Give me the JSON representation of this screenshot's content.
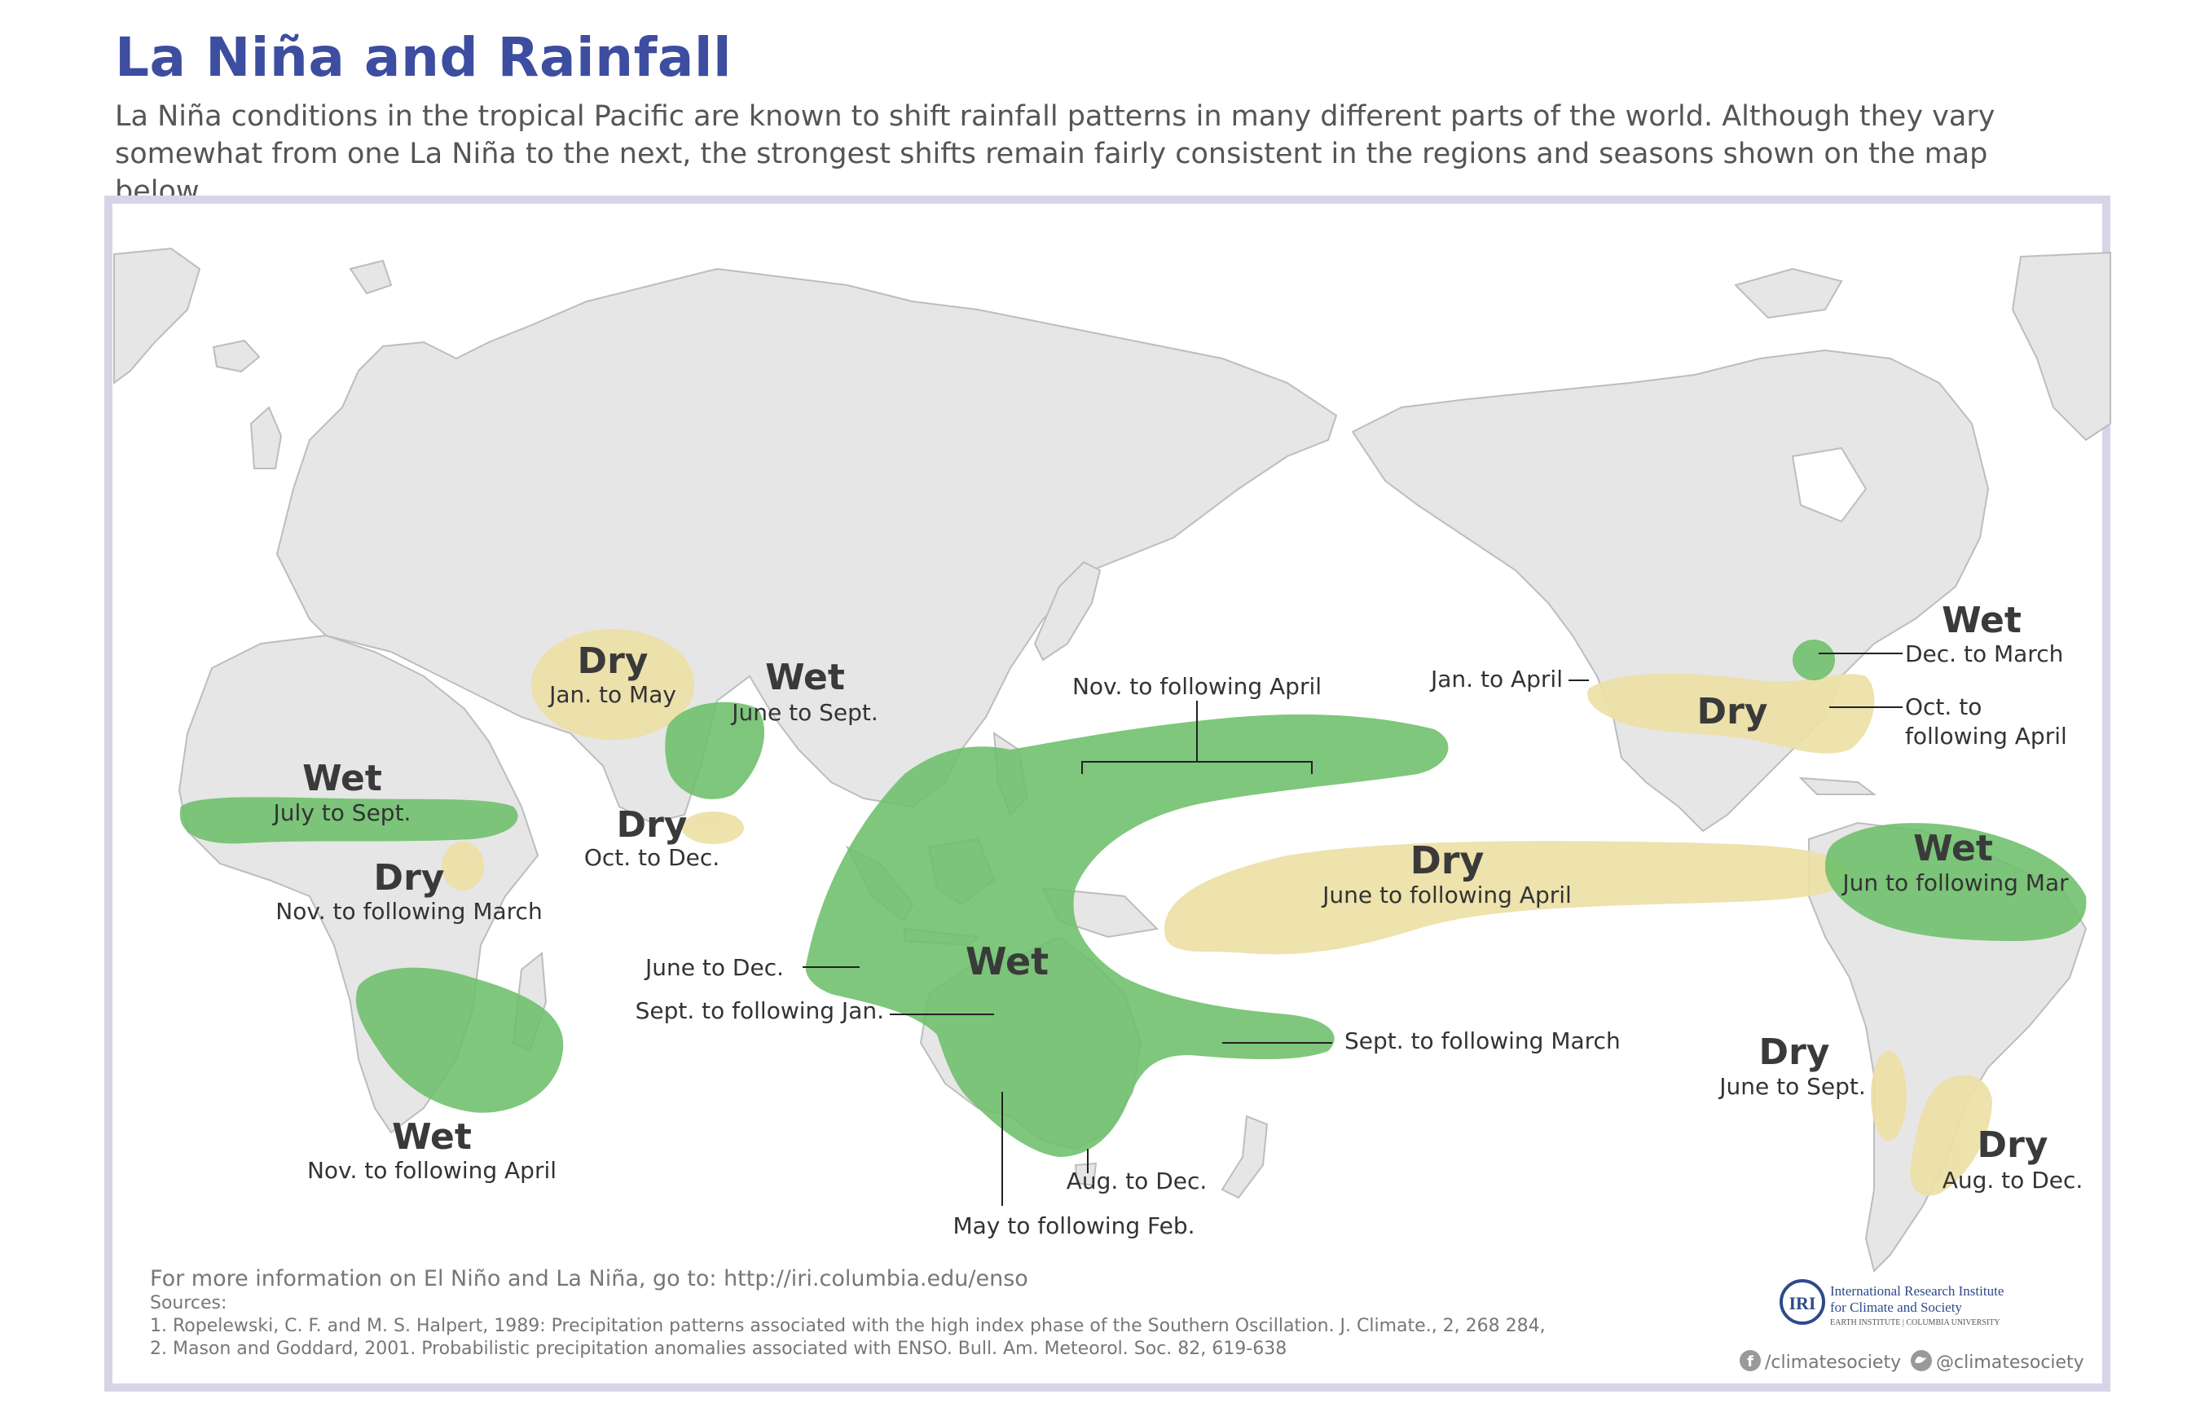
{
  "header": {
    "title": "La Niña and Rainfall",
    "subtitle": "La Niña conditions in the tropical Pacific are known to shift rainfall patterns in many different parts of the world. Although they vary somewhat from one La Niña to the next, the strongest shifts remain fairly consistent in the regions and seasons shown on the map below."
  },
  "colors": {
    "wet": "#6cbf6a",
    "dry": "#ede0a6",
    "land": "#e6e6e6",
    "title": "#3d4da0",
    "frame": "#d6d5e8"
  },
  "regions": {
    "west_africa": {
      "kind": "Wet",
      "season": "July to Sept."
    },
    "east_africa": {
      "kind": "Dry",
      "season": "Nov. to following March"
    },
    "southern_africa": {
      "kind": "Wet",
      "season": "Nov. to following April"
    },
    "middle_east": {
      "kind": "Dry",
      "season": "Jan. to May"
    },
    "india": {
      "kind": "Wet",
      "season": "June to Sept."
    },
    "sri_lanka": {
      "kind": "Dry",
      "season": "Oct. to Dec."
    },
    "indo_australia": {
      "kind": "Wet",
      "seasons": {
        "west_pacific": "Nov. to following April",
        "indonesia": "June to Dec.",
        "north_australia": "Sept. to following Jan.",
        "east_australia": "Sept. to following March",
        "southeast_australia": "Aug. to Dec.",
        "central_australia": "May to following Feb."
      }
    },
    "central_pacific": {
      "kind": "Dry",
      "season": "June to following April"
    },
    "southern_us": {
      "kind": "Dry",
      "season_west": "Jan. to April",
      "season_east": "Oct. to following April"
    },
    "ohio_valley": {
      "kind": "Wet",
      "season": "Dec. to March"
    },
    "northern_south_america": {
      "kind": "Wet",
      "season": "Jun to following Mar"
    },
    "chile": {
      "kind": "Dry",
      "season": "June to Sept."
    },
    "southeast_south_america": {
      "kind": "Dry",
      "season": "Aug. to Dec."
    }
  },
  "footer": {
    "more_info": "For more information on El Niño and La Niña, go to: http://iri.columbia.edu/enso",
    "sources_label": "Sources:",
    "source1": "1. Ropelewski, C. F. and M. S. Halpert, 1989: Precipitation patterns associated with the high index phase of the Southern Oscillation. J. Climate., 2, 268 284,",
    "source2": "2. Mason and Goddard, 2001. Probabilistic precipitation anomalies associated with ENSO. Bull. Am. Meteorol. Soc. 82, 619-638",
    "logo_text": "IRI",
    "org_line1": "International Research Institute",
    "org_line2": "for Climate and Society",
    "org_line3": "EARTH INSTITUTE | COLUMBIA UNIVERSITY",
    "facebook": "/climatesociety",
    "twitter": "@climatesociety"
  }
}
